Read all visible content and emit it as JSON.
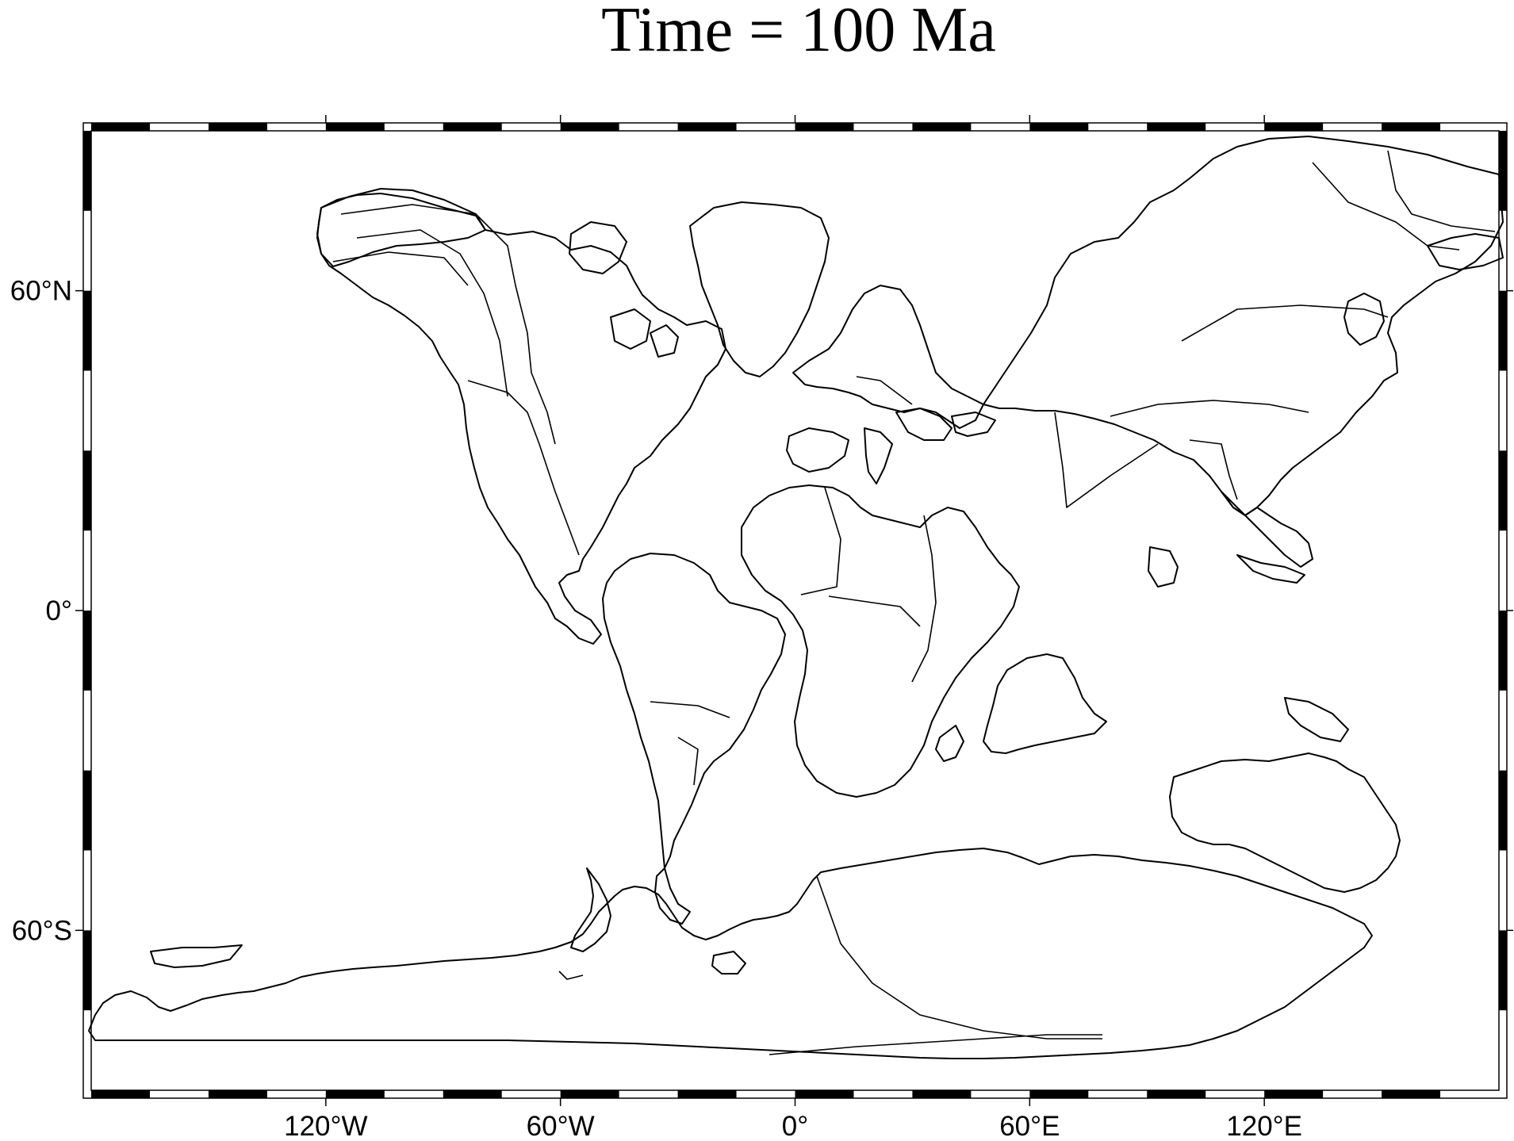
{
  "map": {
    "title": "Time = 100 Ma",
    "projection": "equirectangular",
    "lon_range": [
      -180,
      180
    ],
    "lat_range": [
      -90,
      90
    ],
    "frame_tick_interval_deg": 15,
    "frame_label_interval_deg": 60,
    "x_tick_labels": [
      {
        "lon": -120,
        "label": "120°W"
      },
      {
        "lon": -60,
        "label": "60°W"
      },
      {
        "lon": 0,
        "label": "0°"
      },
      {
        "lon": 60,
        "label": "60°E"
      },
      {
        "lon": 120,
        "label": "120°E"
      }
    ],
    "y_tick_labels": [
      {
        "lat": 60,
        "label": "60°N"
      },
      {
        "lat": 0,
        "label": "0°"
      },
      {
        "lat": -60,
        "label": "60°S"
      }
    ],
    "colors": {
      "line": "#000000",
      "background": "#ffffff",
      "fill": "none"
    }
  }
}
